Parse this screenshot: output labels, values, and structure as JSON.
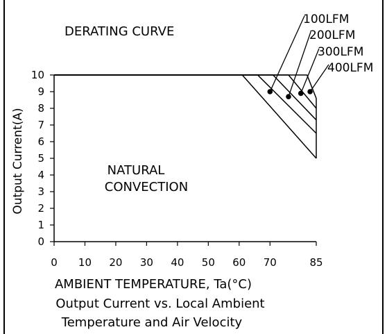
{
  "chart_data": {
    "type": "line",
    "title": "DERATING CURVE",
    "xlabel": "AMBIENT TEMPERATURE, Ta(°C)",
    "ylabel": "Output Current(A)",
    "caption": [
      "Output Current vs. Local Ambient",
      "Temperature and Air Velocity"
    ],
    "x_ticks": [
      0,
      10,
      20,
      30,
      40,
      50,
      60,
      70,
      85
    ],
    "y_ticks": [
      0,
      1,
      2,
      3,
      4,
      5,
      6,
      7,
      8,
      9,
      10
    ],
    "xlim": [
      0,
      85
    ],
    "ylim": [
      0,
      10
    ],
    "grid": false,
    "region_label": [
      "NATURAL",
      "CONVECTION"
    ],
    "series": [
      {
        "name": "NATURAL CONVECTION",
        "x": [
          0,
          61,
          85
        ],
        "y": [
          10,
          10,
          5
        ]
      },
      {
        "name": "100LFM",
        "x": [
          0,
          66,
          85
        ],
        "y": [
          10,
          10,
          6.5
        ]
      },
      {
        "name": "200LFM",
        "x": [
          0,
          71,
          85
        ],
        "y": [
          10,
          10,
          7.3
        ]
      },
      {
        "name": "300LFM",
        "x": [
          0,
          76,
          85
        ],
        "y": [
          10,
          10,
          8.0
        ]
      },
      {
        "name": "400LFM",
        "x": [
          0,
          82,
          85
        ],
        "y": [
          10,
          10,
          8.6
        ]
      }
    ],
    "marker_points": [
      {
        "series": "100LFM",
        "x": 70,
        "y": 9.0
      },
      {
        "series": "200LFM",
        "x": 76,
        "y": 8.7
      },
      {
        "series": "300LFM",
        "x": 80,
        "y": 8.9
      },
      {
        "series": "400LFM",
        "x": 83,
        "y": 9.0
      }
    ]
  }
}
